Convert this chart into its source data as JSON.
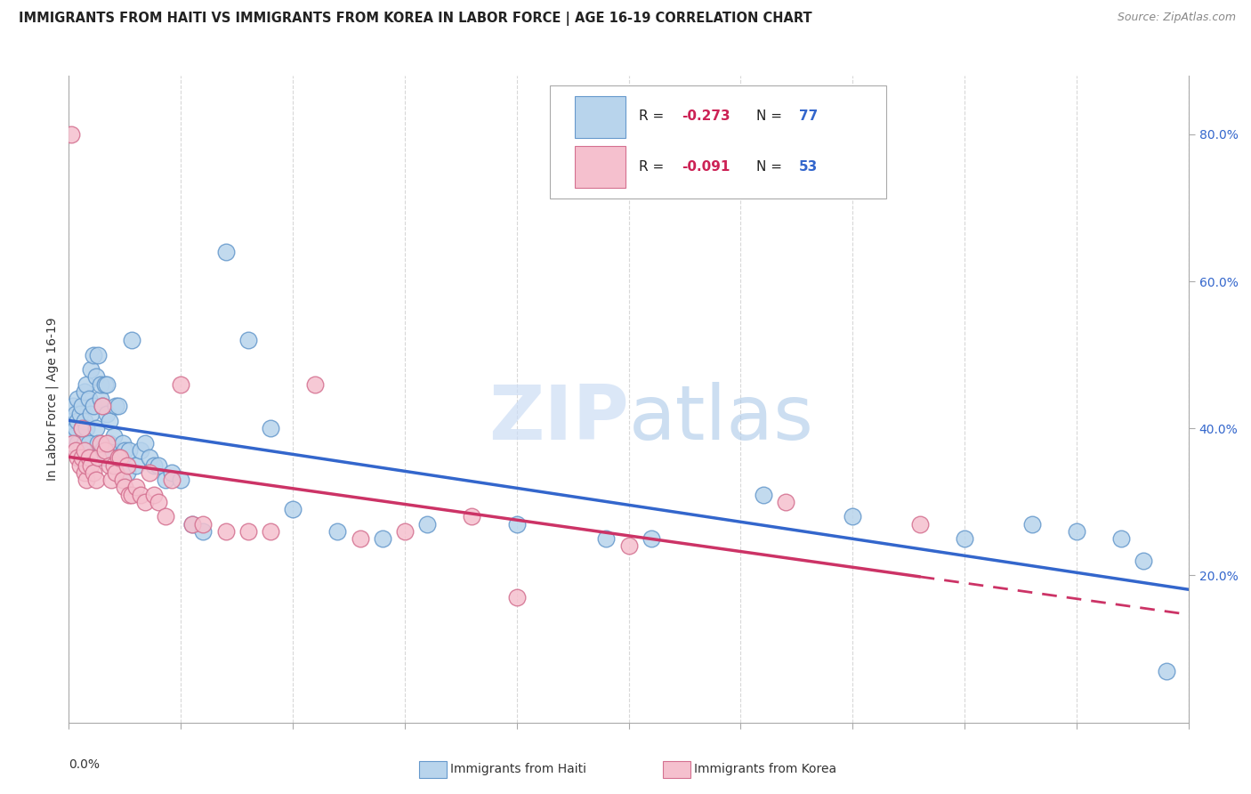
{
  "title": "IMMIGRANTS FROM HAITI VS IMMIGRANTS FROM KOREA IN LABOR FORCE | AGE 16-19 CORRELATION CHART",
  "source": "Source: ZipAtlas.com",
  "ylabel": "In Labor Force | Age 16-19",
  "right_yticks": [
    0.2,
    0.4,
    0.6,
    0.8
  ],
  "right_yticklabels": [
    "20.0%",
    "40.0%",
    "60.0%",
    "80.0%"
  ],
  "xmin": 0.0,
  "xmax": 0.5,
  "ymin": 0.0,
  "ymax": 0.88,
  "haiti_color": "#b8d4ec",
  "haiti_edge_color": "#6699cc",
  "korea_color": "#f5c0ce",
  "korea_edge_color": "#d47090",
  "haiti_line_color": "#3366cc",
  "korea_line_color": "#cc3366",
  "haiti_R": -0.273,
  "haiti_N": 77,
  "korea_R": -0.091,
  "korea_N": 53,
  "watermark": "ZIPatlas",
  "haiti_scatter_x": [
    0.001,
    0.001,
    0.002,
    0.002,
    0.003,
    0.003,
    0.004,
    0.004,
    0.004,
    0.005,
    0.005,
    0.006,
    0.006,
    0.007,
    0.007,
    0.007,
    0.008,
    0.008,
    0.009,
    0.009,
    0.01,
    0.01,
    0.011,
    0.011,
    0.012,
    0.012,
    0.013,
    0.013,
    0.014,
    0.014,
    0.015,
    0.015,
    0.016,
    0.016,
    0.017,
    0.017,
    0.018,
    0.018,
    0.019,
    0.02,
    0.021,
    0.022,
    0.023,
    0.024,
    0.025,
    0.026,
    0.027,
    0.028,
    0.03,
    0.032,
    0.034,
    0.036,
    0.038,
    0.04,
    0.043,
    0.046,
    0.05,
    0.055,
    0.06,
    0.07,
    0.08,
    0.09,
    0.1,
    0.12,
    0.14,
    0.16,
    0.2,
    0.24,
    0.26,
    0.31,
    0.35,
    0.4,
    0.43,
    0.45,
    0.47,
    0.48,
    0.49
  ],
  "haiti_scatter_y": [
    0.38,
    0.41,
    0.39,
    0.43,
    0.4,
    0.42,
    0.38,
    0.41,
    0.44,
    0.37,
    0.42,
    0.4,
    0.43,
    0.45,
    0.38,
    0.41,
    0.46,
    0.4,
    0.44,
    0.38,
    0.48,
    0.42,
    0.5,
    0.43,
    0.47,
    0.4,
    0.5,
    0.38,
    0.44,
    0.46,
    0.43,
    0.37,
    0.46,
    0.36,
    0.46,
    0.42,
    0.41,
    0.38,
    0.36,
    0.39,
    0.43,
    0.43,
    0.36,
    0.38,
    0.37,
    0.34,
    0.37,
    0.52,
    0.35,
    0.37,
    0.38,
    0.36,
    0.35,
    0.35,
    0.33,
    0.34,
    0.33,
    0.27,
    0.26,
    0.64,
    0.52,
    0.4,
    0.29,
    0.26,
    0.25,
    0.27,
    0.27,
    0.25,
    0.25,
    0.31,
    0.28,
    0.25,
    0.27,
    0.26,
    0.25,
    0.22,
    0.07
  ],
  "korea_scatter_x": [
    0.001,
    0.002,
    0.003,
    0.004,
    0.005,
    0.006,
    0.006,
    0.007,
    0.007,
    0.008,
    0.008,
    0.009,
    0.01,
    0.011,
    0.012,
    0.013,
    0.014,
    0.015,
    0.016,
    0.017,
    0.018,
    0.019,
    0.02,
    0.021,
    0.022,
    0.023,
    0.024,
    0.025,
    0.026,
    0.027,
    0.028,
    0.03,
    0.032,
    0.034,
    0.036,
    0.038,
    0.04,
    0.043,
    0.046,
    0.05,
    0.055,
    0.06,
    0.07,
    0.08,
    0.09,
    0.11,
    0.13,
    0.15,
    0.18,
    0.2,
    0.25,
    0.32,
    0.38
  ],
  "korea_scatter_y": [
    0.8,
    0.38,
    0.37,
    0.36,
    0.35,
    0.4,
    0.36,
    0.37,
    0.34,
    0.33,
    0.35,
    0.36,
    0.35,
    0.34,
    0.33,
    0.36,
    0.38,
    0.43,
    0.37,
    0.38,
    0.35,
    0.33,
    0.35,
    0.34,
    0.36,
    0.36,
    0.33,
    0.32,
    0.35,
    0.31,
    0.31,
    0.32,
    0.31,
    0.3,
    0.34,
    0.31,
    0.3,
    0.28,
    0.33,
    0.46,
    0.27,
    0.27,
    0.26,
    0.26,
    0.26,
    0.46,
    0.25,
    0.26,
    0.28,
    0.17,
    0.24,
    0.3,
    0.27
  ],
  "background_color": "#ffffff",
  "grid_color": "#d8d8d8",
  "title_fontsize": 10.5,
  "axis_label_fontsize": 10,
  "tick_fontsize": 10,
  "legend_fontsize": 11
}
